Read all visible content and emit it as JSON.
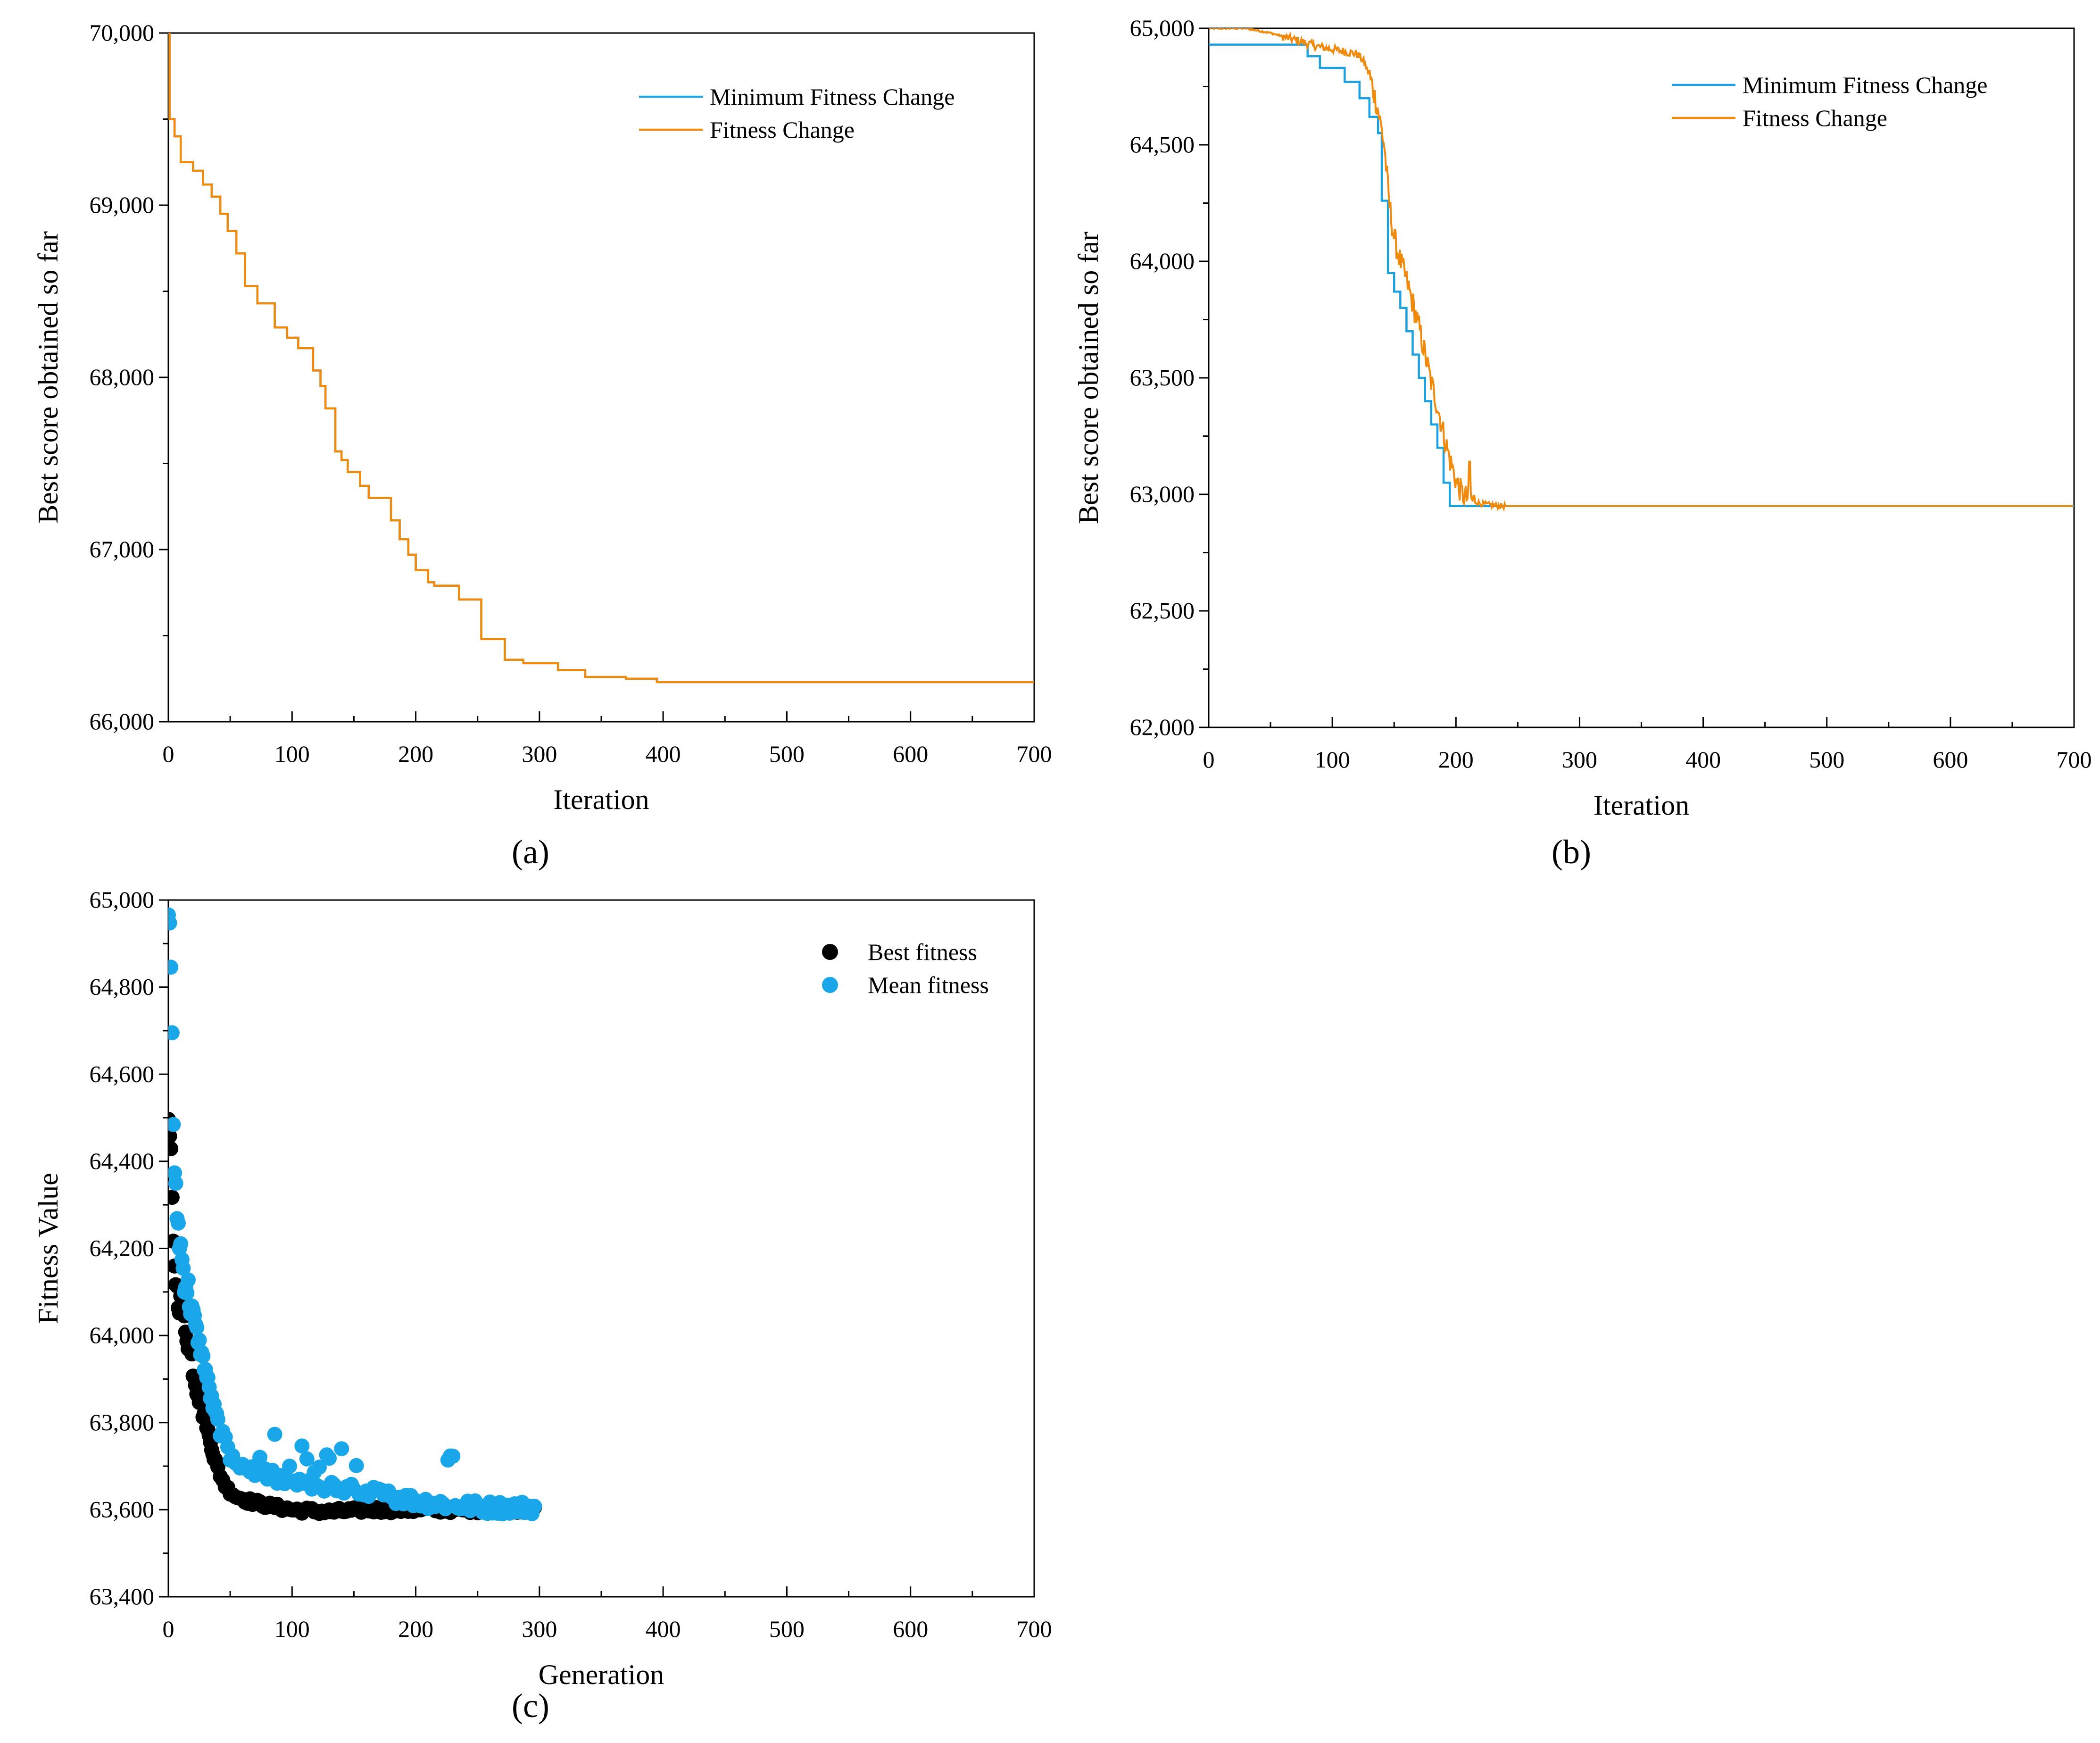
{
  "colors": {
    "blue": "#1ba1e2",
    "orange": "#f08a0c",
    "black": "#000000",
    "mean_blue": "#1aa7ea"
  },
  "chart_data": [
    {
      "panel": "a",
      "caption": "(a)",
      "type": "line",
      "xlabel": "Iteration",
      "ylabel": "Best score obtained so far",
      "xlim": [
        0,
        700
      ],
      "ylim": [
        66000,
        70000
      ],
      "xticks": [
        "0",
        "100",
        "200",
        "300",
        "400",
        "500",
        "600",
        "700"
      ],
      "yticks": [
        "66,000",
        "67,000",
        "68,000",
        "69,000",
        "70,000"
      ],
      "legend_position": "top-right",
      "series": [
        {
          "name": "Minimum Fitness Change",
          "color": "#1ba1e2",
          "step": true,
          "points": [
            [
              0,
              70000
            ],
            [
              1,
              69500
            ],
            [
              5,
              69400
            ],
            [
              10,
              69250
            ],
            [
              20,
              69200
            ],
            [
              28,
              69120
            ],
            [
              35,
              69050
            ],
            [
              42,
              68950
            ],
            [
              48,
              68850
            ],
            [
              55,
              68720
            ],
            [
              62,
              68530
            ],
            [
              72,
              68430
            ],
            [
              86,
              68290
            ],
            [
              96,
              68230
            ],
            [
              105,
              68170
            ],
            [
              117,
              68040
            ],
            [
              123,
              67950
            ],
            [
              127,
              67820
            ],
            [
              135,
              67570
            ],
            [
              140,
              67520
            ],
            [
              145,
              67450
            ],
            [
              155,
              67370
            ],
            [
              162,
              67300
            ],
            [
              180,
              67170
            ],
            [
              187,
              67060
            ],
            [
              194,
              66970
            ],
            [
              200,
              66880
            ],
            [
              210,
              66810
            ],
            [
              215,
              66790
            ],
            [
              235,
              66710
            ],
            [
              253,
              66480
            ],
            [
              272,
              66360
            ],
            [
              287,
              66340
            ],
            [
              315,
              66300
            ],
            [
              337,
              66260
            ],
            [
              370,
              66250
            ],
            [
              395,
              66230
            ],
            [
              700,
              66230
            ]
          ]
        },
        {
          "name": "Fitness Change",
          "color": "#f08a0c",
          "step": true,
          "points": [
            [
              0,
              70000
            ],
            [
              1,
              69500
            ],
            [
              5,
              69400
            ],
            [
              10,
              69250
            ],
            [
              20,
              69200
            ],
            [
              28,
              69120
            ],
            [
              35,
              69050
            ],
            [
              42,
              68950
            ],
            [
              48,
              68850
            ],
            [
              55,
              68720
            ],
            [
              62,
              68530
            ],
            [
              72,
              68430
            ],
            [
              86,
              68290
            ],
            [
              96,
              68230
            ],
            [
              105,
              68170
            ],
            [
              117,
              68040
            ],
            [
              123,
              67950
            ],
            [
              127,
              67820
            ],
            [
              135,
              67570
            ],
            [
              140,
              67520
            ],
            [
              145,
              67450
            ],
            [
              155,
              67370
            ],
            [
              162,
              67300
            ],
            [
              180,
              67170
            ],
            [
              187,
              67060
            ],
            [
              194,
              66970
            ],
            [
              200,
              66880
            ],
            [
              210,
              66810
            ],
            [
              215,
              66790
            ],
            [
              235,
              66710
            ],
            [
              253,
              66480
            ],
            [
              272,
              66360
            ],
            [
              287,
              66340
            ],
            [
              315,
              66300
            ],
            [
              337,
              66260
            ],
            [
              370,
              66250
            ],
            [
              395,
              66230
            ],
            [
              700,
              66230
            ]
          ]
        }
      ]
    },
    {
      "panel": "b",
      "caption": "(b)",
      "type": "line",
      "xlabel": "Iteration",
      "ylabel": "Best score obtained so far",
      "xlim": [
        0,
        700
      ],
      "ylim": [
        62000,
        65000
      ],
      "xticks": [
        "0",
        "100",
        "200",
        "300",
        "400",
        "500",
        "600",
        "700"
      ],
      "yticks": [
        "62,000",
        "62,500",
        "63,000",
        "63,500",
        "64,000",
        "64,500",
        "65,000"
      ],
      "legend_position": "top-right",
      "series": [
        {
          "name": "Minimum Fitness Change",
          "color": "#1ba1e2",
          "step": true,
          "points": [
            [
              0,
              64930
            ],
            [
              75,
              64930
            ],
            [
              80,
              64880
            ],
            [
              90,
              64830
            ],
            [
              110,
              64770
            ],
            [
              122,
              64700
            ],
            [
              130,
              64620
            ],
            [
              137,
              64550
            ],
            [
              140,
              64260
            ],
            [
              145,
              63950
            ],
            [
              150,
              63870
            ],
            [
              155,
              63800
            ],
            [
              160,
              63700
            ],
            [
              165,
              63600
            ],
            [
              170,
              63500
            ],
            [
              175,
              63400
            ],
            [
              180,
              63300
            ],
            [
              185,
              63200
            ],
            [
              190,
              63050
            ],
            [
              195,
              62950
            ],
            [
              700,
              62950
            ]
          ]
        },
        {
          "name": "Fitness Change",
          "color": "#f08a0c",
          "step": false,
          "noisy": true,
          "points": [
            [
              0,
              65000
            ],
            [
              30,
              65000
            ],
            [
              50,
              64980
            ],
            [
              70,
              64950
            ],
            [
              90,
              64920
            ],
            [
              110,
              64900
            ],
            [
              120,
              64890
            ],
            [
              125,
              64860
            ],
            [
              130,
              64800
            ],
            [
              137,
              64650
            ],
            [
              142,
              64500
            ],
            [
              146,
              64250
            ],
            [
              150,
              64100
            ],
            [
              155,
              64000
            ],
            [
              160,
              63920
            ],
            [
              165,
              63820
            ],
            [
              170,
              63720
            ],
            [
              175,
              63600
            ],
            [
              180,
              63480
            ],
            [
              185,
              63380
            ],
            [
              190,
              63260
            ],
            [
              195,
              63150
            ],
            [
              200,
              63060
            ],
            [
              205,
              63000
            ],
            [
              210,
              62980
            ],
            [
              215,
              62970
            ],
            [
              220,
              62960
            ],
            [
              235,
              62950
            ],
            [
              700,
              62950
            ]
          ]
        }
      ]
    },
    {
      "panel": "c",
      "caption": "(c)",
      "type": "scatter",
      "xlabel": "Generation",
      "ylabel": "Fitness Value",
      "xlim": [
        0,
        700
      ],
      "ylim": [
        63400,
        65000
      ],
      "xticks": [
        "0",
        "100",
        "200",
        "300",
        "400",
        "500",
        "600",
        "700"
      ],
      "yticks": [
        "63,400",
        "63,600",
        "63,800",
        "64,000",
        "64,200",
        "64,400",
        "64,600",
        "64,800",
        "65,000"
      ],
      "legend_position": "top-right",
      "series": [
        {
          "name": "Best fitness",
          "color": "#000000",
          "curve": [
            [
              0,
              64500
            ],
            [
              2,
              64400
            ],
            [
              4,
              64200
            ],
            [
              7,
              64100
            ],
            [
              12,
              64050
            ],
            [
              17,
              63980
            ],
            [
              22,
              63900
            ],
            [
              27,
              63850
            ],
            [
              32,
              63780
            ],
            [
              37,
              63720
            ],
            [
              42,
              63680
            ],
            [
              47,
              63650
            ],
            [
              55,
              63630
            ],
            [
              65,
              63620
            ],
            [
              80,
              63610
            ],
            [
              100,
              63600
            ],
            [
              130,
              63595
            ],
            [
              160,
              63600
            ],
            [
              200,
              63600
            ],
            [
              250,
              63600
            ],
            [
              295,
              63600
            ]
          ]
        },
        {
          "name": "Mean fitness",
          "color": "#1aa7ea",
          "curve": [
            [
              0,
              65000
            ],
            [
              2,
              64850
            ],
            [
              3,
              64700
            ],
            [
              4,
              64500
            ],
            [
              5,
              64350
            ],
            [
              8,
              64250
            ],
            [
              12,
              64150
            ],
            [
              16,
              64100
            ],
            [
              20,
              64050
            ],
            [
              25,
              63980
            ],
            [
              30,
              63920
            ],
            [
              35,
              63850
            ],
            [
              40,
              63800
            ],
            [
              45,
              63760
            ],
            [
              50,
              63720
            ],
            [
              60,
              63700
            ],
            [
              80,
              63680
            ],
            [
              100,
              63660
            ],
            [
              130,
              63650
            ],
            [
              160,
              63640
            ],
            [
              200,
              63620
            ],
            [
              230,
              63610
            ],
            [
              260,
              63605
            ],
            [
              295,
              63605
            ]
          ]
        }
      ]
    }
  ]
}
